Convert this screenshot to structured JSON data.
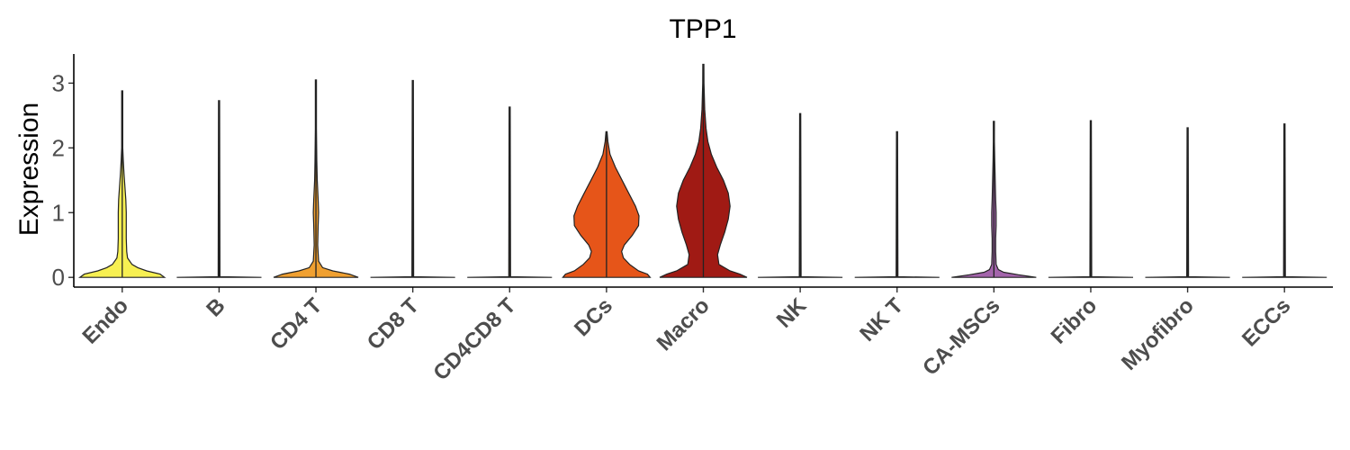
{
  "chart_data": {
    "type": "violin",
    "title": "TPP1",
    "ylabel": "Expression",
    "xlabel": "",
    "ylim": [
      -0.15,
      3.45
    ],
    "yticks": [
      0,
      1,
      2,
      3
    ],
    "grid": false,
    "legend": "none",
    "categories": [
      "Endo",
      "B",
      "CD4 T",
      "CD8 T",
      "CD4CD8 T",
      "DCs",
      "Macro",
      "NK",
      "NK T",
      "CA-MSCs",
      "Fibro",
      "Myofibro",
      "ECCs"
    ],
    "series": [
      {
        "category": "Endo",
        "color": "#f7f052",
        "max": 2.88,
        "density": [
          [
            0,
            0.95
          ],
          [
            0.05,
            0.85
          ],
          [
            0.1,
            0.55
          ],
          [
            0.15,
            0.35
          ],
          [
            0.2,
            0.22
          ],
          [
            0.3,
            0.12
          ],
          [
            0.4,
            0.1
          ],
          [
            0.6,
            0.09
          ],
          [
            0.8,
            0.09
          ],
          [
            1.0,
            0.09
          ],
          [
            1.2,
            0.08
          ],
          [
            1.4,
            0.06
          ],
          [
            1.6,
            0.04
          ],
          [
            1.8,
            0.025
          ],
          [
            2.0,
            0.01
          ],
          [
            2.3,
            0.008
          ],
          [
            2.88,
            0.008
          ]
        ]
      },
      {
        "category": "B",
        "color": "#f7f052",
        "max": 2.73,
        "density": [
          [
            0,
            0.95
          ],
          [
            0.01,
            0.02
          ],
          [
            2.73,
            0.01
          ]
        ]
      },
      {
        "category": "CD4 T",
        "color": "#f0a030",
        "max": 3.05,
        "density": [
          [
            0,
            0.95
          ],
          [
            0.05,
            0.75
          ],
          [
            0.1,
            0.38
          ],
          [
            0.15,
            0.15
          ],
          [
            0.25,
            0.06
          ],
          [
            0.5,
            0.04
          ],
          [
            0.8,
            0.05
          ],
          [
            1.0,
            0.06
          ],
          [
            1.2,
            0.05
          ],
          [
            1.5,
            0.03
          ],
          [
            1.8,
            0.02
          ],
          [
            2.3,
            0.01
          ],
          [
            3.05,
            0.008
          ]
        ]
      },
      {
        "category": "CD8 T",
        "color": "#f0a030",
        "max": 3.04,
        "density": [
          [
            0,
            0.95
          ],
          [
            0.01,
            0.02
          ],
          [
            3.04,
            0.01
          ]
        ]
      },
      {
        "category": "CD4CD8 T",
        "color": "#f0a030",
        "max": 2.63,
        "density": [
          [
            0,
            0.95
          ],
          [
            0.01,
            0.02
          ],
          [
            2.63,
            0.01
          ]
        ]
      },
      {
        "category": "DCs",
        "color": "#e65519",
        "max": 2.25,
        "density": [
          [
            0,
            0.98
          ],
          [
            0.05,
            0.92
          ],
          [
            0.1,
            0.72
          ],
          [
            0.2,
            0.52
          ],
          [
            0.3,
            0.38
          ],
          [
            0.4,
            0.34
          ],
          [
            0.5,
            0.4
          ],
          [
            0.65,
            0.58
          ],
          [
            0.8,
            0.72
          ],
          [
            0.95,
            0.73
          ],
          [
            1.1,
            0.65
          ],
          [
            1.3,
            0.5
          ],
          [
            1.5,
            0.35
          ],
          [
            1.7,
            0.2
          ],
          [
            1.9,
            0.08
          ],
          [
            2.1,
            0.03
          ],
          [
            2.25,
            0.01
          ]
        ]
      },
      {
        "category": "Macro",
        "color": "#a01a14",
        "max": 3.29,
        "density": [
          [
            0,
            0.98
          ],
          [
            0.05,
            0.82
          ],
          [
            0.1,
            0.6
          ],
          [
            0.2,
            0.35
          ],
          [
            0.35,
            0.32
          ],
          [
            0.5,
            0.38
          ],
          [
            0.7,
            0.48
          ],
          [
            0.9,
            0.56
          ],
          [
            1.1,
            0.6
          ],
          [
            1.3,
            0.56
          ],
          [
            1.5,
            0.45
          ],
          [
            1.7,
            0.3
          ],
          [
            1.9,
            0.18
          ],
          [
            2.1,
            0.1
          ],
          [
            2.3,
            0.06
          ],
          [
            2.6,
            0.03
          ],
          [
            3.0,
            0.015
          ],
          [
            3.29,
            0.008
          ]
        ]
      },
      {
        "category": "NK",
        "color": "#a01a14",
        "max": 2.53,
        "density": [
          [
            0,
            0.95
          ],
          [
            0.01,
            0.02
          ],
          [
            2.53,
            0.01
          ]
        ]
      },
      {
        "category": "NK T",
        "color": "#a01a14",
        "max": 2.25,
        "density": [
          [
            0,
            0.95
          ],
          [
            0.01,
            0.02
          ],
          [
            2.25,
            0.01
          ]
        ]
      },
      {
        "category": "CA-MSCs",
        "color": "#a364ab",
        "max": 2.41,
        "density": [
          [
            0,
            0.95
          ],
          [
            0.04,
            0.55
          ],
          [
            0.08,
            0.22
          ],
          [
            0.12,
            0.1
          ],
          [
            0.2,
            0.05
          ],
          [
            0.4,
            0.04
          ],
          [
            0.6,
            0.04
          ],
          [
            0.8,
            0.05
          ],
          [
            1.0,
            0.05
          ],
          [
            1.2,
            0.04
          ],
          [
            1.5,
            0.03
          ],
          [
            1.8,
            0.02
          ],
          [
            2.1,
            0.01
          ],
          [
            2.41,
            0.008
          ]
        ]
      },
      {
        "category": "Fibro",
        "color": "#a364ab",
        "max": 2.42,
        "density": [
          [
            0,
            0.95
          ],
          [
            0.01,
            0.02
          ],
          [
            2.42,
            0.01
          ]
        ]
      },
      {
        "category": "Myofibro",
        "color": "#a364ab",
        "max": 2.31,
        "density": [
          [
            0,
            0.95
          ],
          [
            0.01,
            0.02
          ],
          [
            2.31,
            0.01
          ]
        ]
      },
      {
        "category": "ECCs",
        "color": "#a364ab",
        "max": 2.37,
        "density": [
          [
            0,
            0.95
          ],
          [
            0.01,
            0.02
          ],
          [
            2.37,
            0.01
          ]
        ]
      }
    ]
  }
}
